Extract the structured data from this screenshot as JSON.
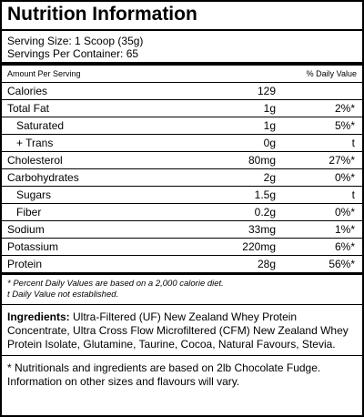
{
  "header": {
    "title": "Nutrition Information"
  },
  "serving": {
    "size": "Serving Size: 1 Scoop (35g)",
    "per_container_label": "Servings Per Container:",
    "per_container_value": "65"
  },
  "table": {
    "col_headers": [
      "Amount Per Serving",
      "% Daily Value"
    ],
    "rows": [
      [
        "Calories",
        "129",
        ""
      ],
      [
        "Total Fat",
        "1g",
        "2%*"
      ],
      [
        "Saturated",
        "1g",
        "5%*"
      ],
      [
        "+ Trans",
        "0g",
        "t"
      ],
      [
        "Cholesterol",
        "80mg",
        "27%*"
      ],
      [
        "Carbohydrates",
        "2g",
        "0%*"
      ],
      [
        "Sugars",
        "1.5g",
        "t"
      ],
      [
        "Fiber",
        "0.2g",
        "0%*"
      ],
      [
        "Sodium",
        "33mg",
        "1%*"
      ],
      [
        "Potassium",
        "220mg",
        "6%*"
      ],
      [
        "Protein",
        "28g",
        "56%*"
      ]
    ]
  },
  "footnotes": [
    "* Percent Daily Values are based on a 2,000 calorie diet.",
    "t Daily Value not established."
  ],
  "ingredients": {
    "label": "Ingredients:",
    "text": "Ultra-Filtered (UF) New Zealand Whey Protein Concentrate, Ultra Cross Flow Microfiltered (CFM) New Zealand Whey Protein Isolate, Glutamine, Taurine, Cocoa, Natural Favours, Stevia."
  },
  "note": "* Nutritionals and ingredients are based on 2lb Chocolate Fudge. Information on other sizes and flavours will vary."
}
